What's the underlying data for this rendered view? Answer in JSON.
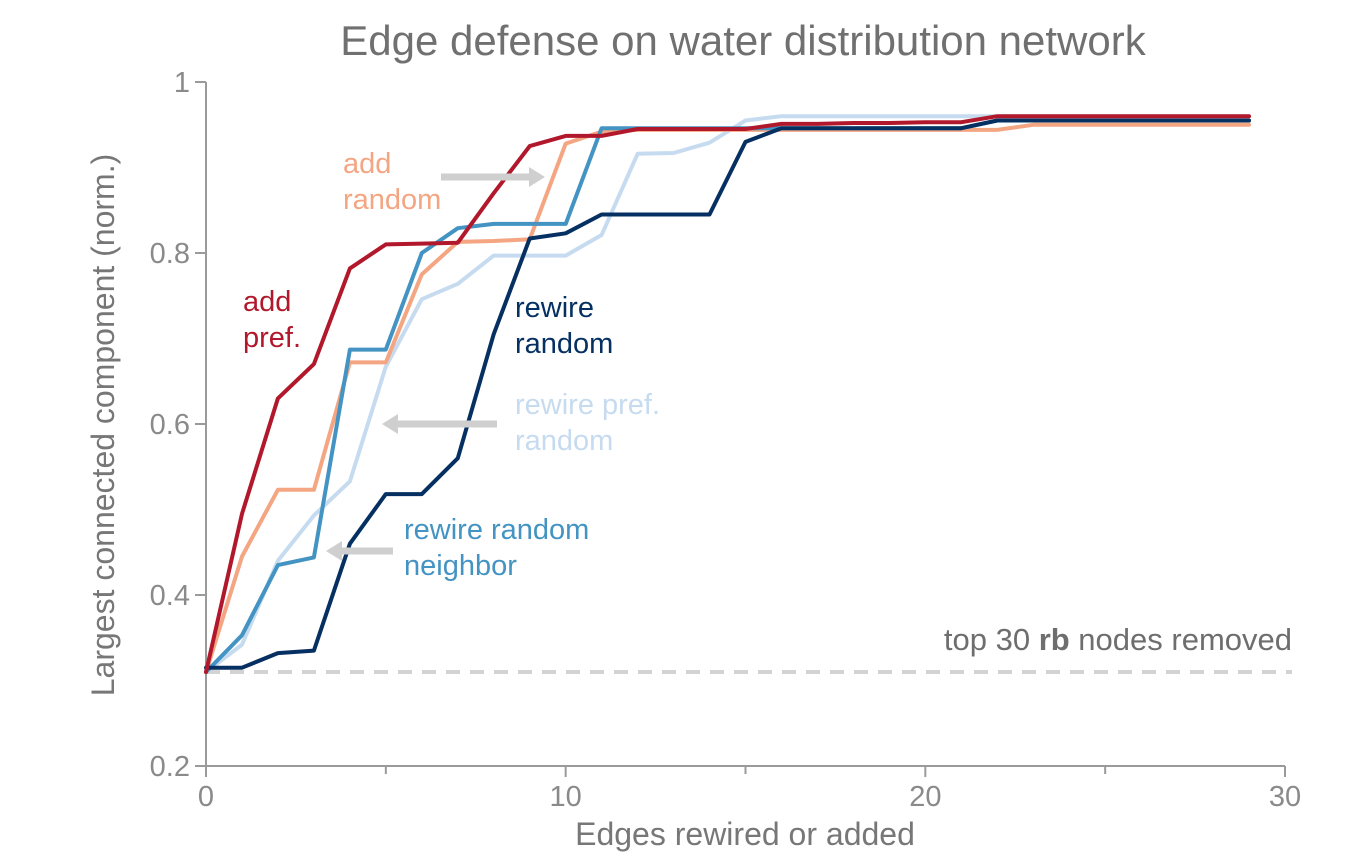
{
  "chart_data": {
    "type": "line",
    "title": "Edge defense on water distribution network",
    "xlabel": "Edges rewired or added",
    "ylabel": "Largest connected component (norm.)",
    "xlim": [
      0,
      30
    ],
    "ylim": [
      0.2,
      1.0
    ],
    "x_ticks": [
      0,
      10,
      20,
      30
    ],
    "x_minor_ticks": [
      5,
      15,
      25
    ],
    "y_ticks": [
      0.2,
      0.4,
      0.6,
      0.8,
      1.0
    ],
    "x_tick_labels": [
      "0",
      "10",
      "20",
      "30"
    ],
    "y_tick_labels": [
      "0.2",
      "0.4",
      "0.6",
      "0.8",
      "1"
    ],
    "grid": false,
    "legend": "inline labels",
    "baseline": {
      "value": 0.31,
      "label_pre": "top 30 ",
      "label_bold": "rb",
      "label_post": " nodes removed",
      "color": "#d3d3d3"
    },
    "series": [
      {
        "label_lines": [
          "add",
          "pref."
        ],
        "color": "#b2182b",
        "x": [
          0,
          1,
          2,
          3,
          4,
          5,
          6,
          7,
          8,
          9,
          10,
          11,
          12,
          13,
          14,
          15,
          16,
          17,
          18,
          19,
          20,
          21,
          22,
          23,
          24,
          25,
          26,
          27,
          28,
          29
        ],
        "values": [
          0.31,
          0.495,
          0.63,
          0.67,
          0.782,
          0.81,
          0.811,
          0.812,
          0.87,
          0.925,
          0.937,
          0.937,
          0.945,
          0.945,
          0.945,
          0.945,
          0.951,
          0.951,
          0.952,
          0.952,
          0.953,
          0.953,
          0.96,
          0.96,
          0.96,
          0.96,
          0.96,
          0.96,
          0.96,
          0.96
        ]
      },
      {
        "label_lines": [
          "add",
          "random"
        ],
        "color": "#f4a582",
        "x": [
          0,
          1,
          2,
          3,
          4,
          5,
          6,
          7,
          8,
          9,
          10,
          11,
          12,
          13,
          14,
          15,
          16,
          17,
          18,
          19,
          20,
          21,
          22,
          23,
          24,
          25,
          26,
          27,
          28,
          29
        ],
        "values": [
          0.31,
          0.445,
          0.523,
          0.523,
          0.672,
          0.672,
          0.775,
          0.813,
          0.814,
          0.816,
          0.928,
          0.942,
          0.944,
          0.944,
          0.944,
          0.944,
          0.944,
          0.944,
          0.944,
          0.944,
          0.944,
          0.944,
          0.944,
          0.95,
          0.95,
          0.95,
          0.95,
          0.95,
          0.95,
          0.95
        ]
      },
      {
        "label_lines": [
          "rewire random",
          "neighbor"
        ],
        "color": "#4393c3",
        "x": [
          0,
          1,
          2,
          3,
          4,
          5,
          6,
          7,
          8,
          9,
          10,
          11,
          12,
          13,
          14,
          15,
          16,
          17,
          18,
          19,
          20,
          21,
          22,
          23,
          24,
          25,
          26,
          27,
          28,
          29
        ],
        "values": [
          0.31,
          0.353,
          0.435,
          0.444,
          0.687,
          0.687,
          0.8,
          0.829,
          0.834,
          0.834,
          0.834,
          0.946,
          0.946,
          0.946,
          0.946,
          0.946,
          0.946,
          0.946,
          0.946,
          0.946,
          0.946,
          0.946,
          0.955,
          0.955,
          0.955,
          0.955,
          0.955,
          0.955,
          0.955,
          0.955
        ]
      },
      {
        "label_lines": [
          "rewire pref.",
          "random"
        ],
        "color": "#c6dbef",
        "x": [
          0,
          1,
          2,
          3,
          4,
          5,
          6,
          7,
          8,
          9,
          10,
          11,
          12,
          13,
          14,
          15,
          16,
          17,
          18,
          19,
          20,
          21,
          22,
          23,
          24,
          25,
          26,
          27,
          28,
          29
        ],
        "values": [
          0.31,
          0.342,
          0.44,
          0.493,
          0.533,
          0.667,
          0.746,
          0.764,
          0.797,
          0.797,
          0.797,
          0.821,
          0.916,
          0.917,
          0.929,
          0.955,
          0.96,
          0.96,
          0.96,
          0.96,
          0.96,
          0.96,
          0.96,
          0.96,
          0.96,
          0.96,
          0.96,
          0.96,
          0.96,
          0.96
        ]
      },
      {
        "label_lines": [
          "rewire",
          "random"
        ],
        "color": "#053061",
        "x": [
          0,
          1,
          2,
          3,
          4,
          5,
          6,
          7,
          8,
          9,
          10,
          11,
          12,
          13,
          14,
          15,
          16,
          17,
          18,
          19,
          20,
          21,
          22,
          23,
          24,
          25,
          26,
          27,
          28,
          29
        ],
        "values": [
          0.315,
          0.315,
          0.332,
          0.335,
          0.46,
          0.518,
          0.518,
          0.56,
          0.705,
          0.817,
          0.823,
          0.845,
          0.845,
          0.845,
          0.845,
          0.93,
          0.946,
          0.946,
          0.946,
          0.946,
          0.946,
          0.946,
          0.955,
          0.955,
          0.955,
          0.955,
          0.955,
          0.955,
          0.955,
          0.955
        ]
      }
    ]
  }
}
